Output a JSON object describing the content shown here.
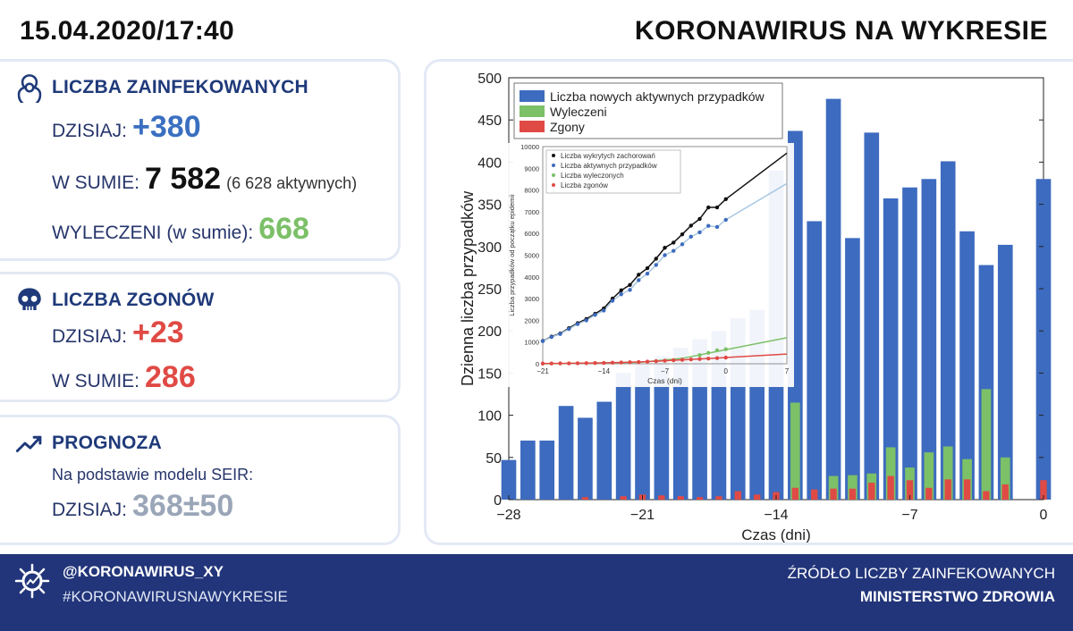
{
  "header": {
    "datetime": "15.04.2020/17:40",
    "title": "KORONAWIRUS NA WYKRESIE"
  },
  "infected": {
    "icon": "biohazard-icon",
    "title": "LICZBA ZAINFEKOWANYCH",
    "today_label": "DZISIAJ:",
    "today_value": "+380",
    "total_label": "W SUMIE:",
    "total_value": "7 582",
    "active_note": "(6 628 aktywnych)",
    "recovered_label": "WYLECZENI (w sumie):",
    "recovered_value": "668"
  },
  "deaths": {
    "icon": "skull-icon",
    "title": "LICZBA ZGONÓW",
    "today_label": "DZISIAJ:",
    "today_value": "+23",
    "total_label": "W SUMIE:",
    "total_value": "286"
  },
  "forecast": {
    "icon": "trend-up-icon",
    "title": "PROGNOZA",
    "model_text": "Na podstawie modelu SEIR:",
    "today_label": "DZISIAJ:",
    "today_value": "368±50"
  },
  "footer": {
    "icon": "virus-icon",
    "handle": "@KORONAWIRUS_XY",
    "hashtag": "#KORONAWIRUSNAWYKRESIE",
    "source_label": "ŹRÓDŁO LICZBY ZAINFEKOWANYCH",
    "source_name": "MINISTERSTWO ZDROWIA"
  },
  "colors": {
    "active": "#3d6bbf",
    "recovered": "#7cc068",
    "deaths": "#e04a45",
    "navy": "#22357a"
  },
  "chart_data": [
    {
      "type": "bar",
      "xlabel": "Czas (dni)",
      "ylabel": "Dzienna liczba przypadków",
      "xlim": [
        -28,
        0
      ],
      "ylim": [
        0,
        500
      ],
      "xticks": [
        -28,
        -21,
        -14,
        -7,
        0
      ],
      "yticks": [
        0,
        50,
        100,
        150,
        200,
        250,
        300,
        350,
        400,
        450,
        500
      ],
      "grid": false,
      "legend": "top-left",
      "x": [
        -28,
        -27,
        -26,
        -25,
        -24,
        -23,
        -22,
        -21,
        -20,
        -19,
        -18,
        -17,
        -16,
        -15,
        -14,
        -13,
        -12,
        -11,
        -10,
        -9,
        -8,
        -7,
        -6,
        -5,
        -4,
        -3,
        -2,
        -1,
        0
      ],
      "series": [
        {
          "name": "Liczba nowych aktywnych przypadków",
          "color": "#3d6bbf",
          "values": [
            47,
            70,
            70,
            111,
            97,
            116,
            150,
            160,
            170,
            180,
            190,
            200,
            215,
            225,
            390,
            437,
            330,
            475,
            310,
            435,
            357,
            370,
            380,
            401,
            318,
            278,
            302,
            null,
            380
          ]
        },
        {
          "name": "Wyleczeni",
          "color": "#7cc068",
          "values": [
            0,
            0,
            0,
            0,
            0,
            0,
            0,
            0,
            0,
            0,
            0,
            0,
            0,
            0,
            0,
            115,
            0,
            28,
            29,
            31,
            62,
            38,
            56,
            63,
            48,
            131,
            50,
            null,
            0
          ]
        },
        {
          "name": "Zgony",
          "color": "#e04a45",
          "values": [
            0,
            0,
            0,
            0,
            3,
            0,
            4,
            6,
            5,
            4,
            3,
            4,
            10,
            6,
            9,
            14,
            12,
            13,
            13,
            20,
            28,
            23,
            14,
            24,
            24,
            10,
            18,
            null,
            23
          ]
        }
      ]
    },
    {
      "type": "scatter",
      "inset": true,
      "xlabel": "Czas (dni)",
      "ylabel": "Liczba przypadków od początku epidemii",
      "xlim": [
        -21,
        7
      ],
      "ylim": [
        0,
        10000
      ],
      "xticks": [
        -21,
        -14,
        -7,
        0,
        7
      ],
      "yticks": [
        0,
        1000,
        2000,
        3000,
        4000,
        5000,
        6000,
        7000,
        8000,
        9000,
        10000
      ],
      "legend": "top-left",
      "series": [
        {
          "name": "Liczba wykrytych zachorowań",
          "color": "#111111",
          "x": [
            -21,
            -20,
            -19,
            -18,
            -17,
            -16,
            -15,
            -14,
            -13,
            -12,
            -11,
            -10,
            -9,
            -8,
            -7,
            -6,
            -5,
            -4,
            -3,
            -2,
            -1,
            0
          ],
          "y": [
            1050,
            1250,
            1390,
            1640,
            1870,
            2060,
            2300,
            2550,
            3000,
            3380,
            3630,
            4100,
            4400,
            4840,
            5340,
            5580,
            5960,
            6360,
            6670,
            7200,
            7200,
            7580
          ]
        },
        {
          "name": "Liczba aktywnych przypadków",
          "color": "#3d6bbf",
          "x": [
            -21,
            -20,
            -19,
            -18,
            -17,
            -16,
            -15,
            -14,
            -13,
            -12,
            -11,
            -10,
            -9,
            -8,
            -7,
            -6,
            -5,
            -4,
            -3,
            -2,
            -1,
            0
          ],
          "y": [
            1040,
            1230,
            1370,
            1600,
            1830,
            2000,
            2250,
            2450,
            2900,
            3200,
            3400,
            3850,
            4150,
            4550,
            5000,
            5200,
            5500,
            5850,
            6050,
            6350,
            6300,
            6630
          ]
        },
        {
          "name": "Liczba wyleczonych",
          "color": "#7cc068",
          "x": [
            -3,
            -2,
            -1,
            0
          ],
          "y": [
            400,
            500,
            620,
            670
          ]
        },
        {
          "name": "Liczba zgonów",
          "color": "#e04a45",
          "x": [
            -21,
            -20,
            -19,
            -18,
            -17,
            -16,
            -15,
            -14,
            -13,
            -12,
            -11,
            -10,
            -9,
            -8,
            -7,
            -6,
            -5,
            -4,
            -3,
            -2,
            -1,
            0
          ],
          "y": [
            10,
            14,
            17,
            20,
            25,
            30,
            35,
            40,
            50,
            60,
            70,
            80,
            100,
            120,
            140,
            160,
            180,
            200,
            220,
            240,
            260,
            286
          ]
        }
      ]
    }
  ]
}
